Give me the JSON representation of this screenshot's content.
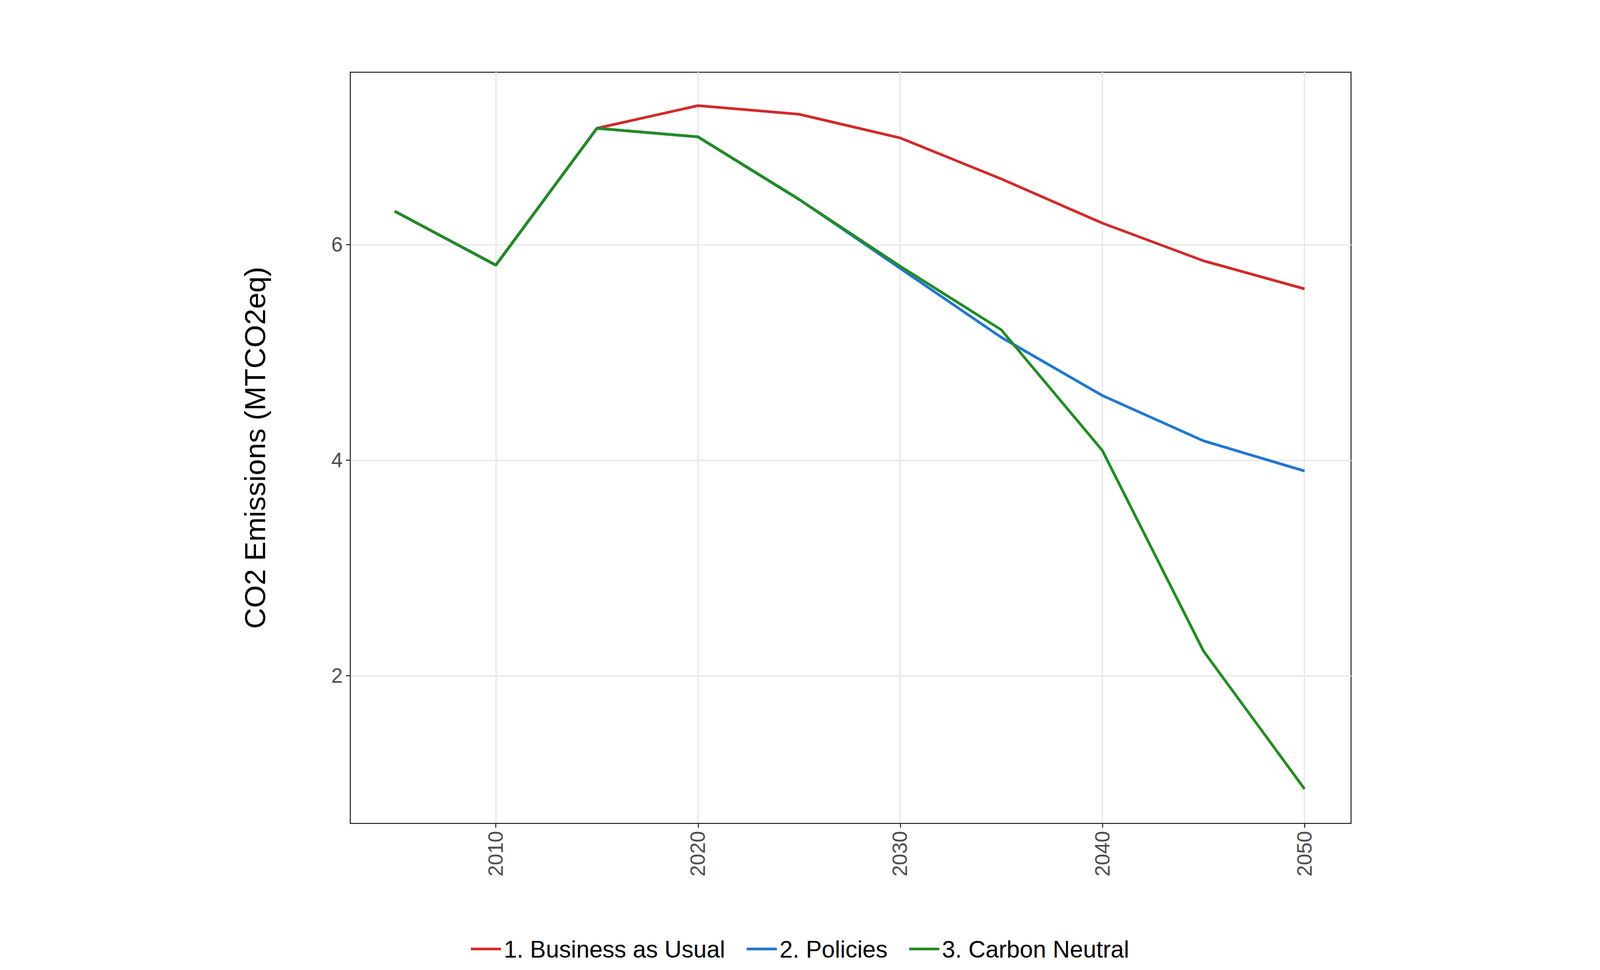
{
  "chart_data": {
    "type": "line",
    "y_label": "CO2 Emissions (MTCO2eq)",
    "x": [
      2005,
      2010,
      2015,
      2020,
      2025,
      2030,
      2035,
      2040,
      2045,
      2050
    ],
    "series": [
      {
        "name": "1. Business as Usual",
        "color": "#d12a2a",
        "values": [
          6.31,
          5.81,
          7.08,
          7.29,
          7.21,
          6.99,
          6.61,
          6.2,
          5.85,
          5.59
        ]
      },
      {
        "name": "2. Policies",
        "color": "#1f77d0",
        "values": [
          6.31,
          5.81,
          7.08,
          7.0,
          6.42,
          5.78,
          5.14,
          4.6,
          4.18,
          3.9
        ]
      },
      {
        "name": "3. Carbon Neutral",
        "color": "#228b22",
        "values": [
          6.31,
          5.81,
          7.08,
          7.0,
          6.42,
          5.8,
          5.21,
          4.09,
          2.23,
          0.95
        ]
      }
    ],
    "xlim": [
      2002.8,
      2052.3
    ],
    "ylim": [
      0.63,
      7.6
    ],
    "xticks": [
      2010,
      2020,
      2030,
      2040,
      2050
    ],
    "yticks": [
      2,
      4,
      6
    ],
    "grid": true,
    "legend": "bottom"
  }
}
